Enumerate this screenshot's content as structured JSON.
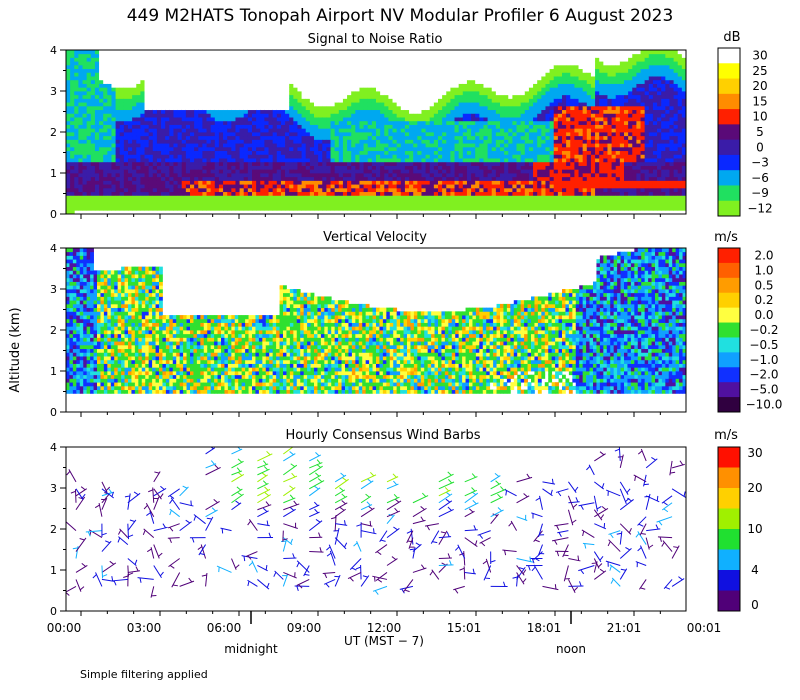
{
  "title": "449 M2HATS Tonopah Airport NV Modular Profiler  6 August 2023",
  "ylabel": "Altitude (km)",
  "footer_note": "Simple filtering applied",
  "chart_data": [
    {
      "type": "heatmap",
      "title": "Signal to Noise Ratio",
      "units": "dB",
      "ylim": [
        0,
        4
      ],
      "yticks": [
        "0",
        "1",
        "2",
        "3",
        "4"
      ],
      "colorbar_labels": [
        "30",
        "25",
        "20",
        "15",
        "10",
        "5",
        "0",
        "−3",
        "−6",
        "−9",
        "−12"
      ],
      "colorbar_colors": [
        "#ffffff",
        "#ffff00",
        "#ffd000",
        "#ff8c00",
        "#ff2000",
        "#5a0a78",
        "#3a1ca8",
        "#0a28ff",
        "#00a8f0",
        "#20e060",
        "#80f020"
      ]
    },
    {
      "type": "heatmap",
      "title": "Vertical Velocity",
      "units": "m/s",
      "ylim": [
        0,
        4
      ],
      "yticks": [
        "0",
        "1",
        "2",
        "3",
        "4"
      ],
      "colorbar_labels": [
        "2.0",
        "1.0",
        "0.5",
        "0.2",
        "0.0",
        "−0.2",
        "−0.5",
        "−1.0",
        "−2.0",
        "−5.0",
        "−10.0"
      ],
      "colorbar_colors": [
        "#ff2000",
        "#ff6000",
        "#ff9c00",
        "#ffd000",
        "#ffff40",
        "#30e030",
        "#20e0e0",
        "#10a0ff",
        "#1030ff",
        "#5010a0",
        "#300040"
      ]
    },
    {
      "type": "scatter",
      "title": "Hourly Consensus Wind Barbs",
      "units": "m/s",
      "ylim": [
        0,
        4
      ],
      "yticks": [
        "0",
        "1",
        "2",
        "3",
        "4"
      ],
      "colorbar_labels": [
        "30",
        "20",
        "10",
        "4",
        "0"
      ],
      "colorbar_colors": [
        "#ff1000",
        "#ff9000",
        "#ffd000",
        "#a0f000",
        "#20e030",
        "#10b0ff",
        "#1010e0",
        "#500078"
      ],
      "xticks": [
        "00:00",
        "03:00",
        "06:00",
        "09:00",
        "12:00",
        "15:01",
        "18:01",
        "21:01",
        "00:01"
      ],
      "xlabel": "UT  (MST − 7)",
      "markers": [
        "midnight",
        "noon"
      ]
    }
  ]
}
